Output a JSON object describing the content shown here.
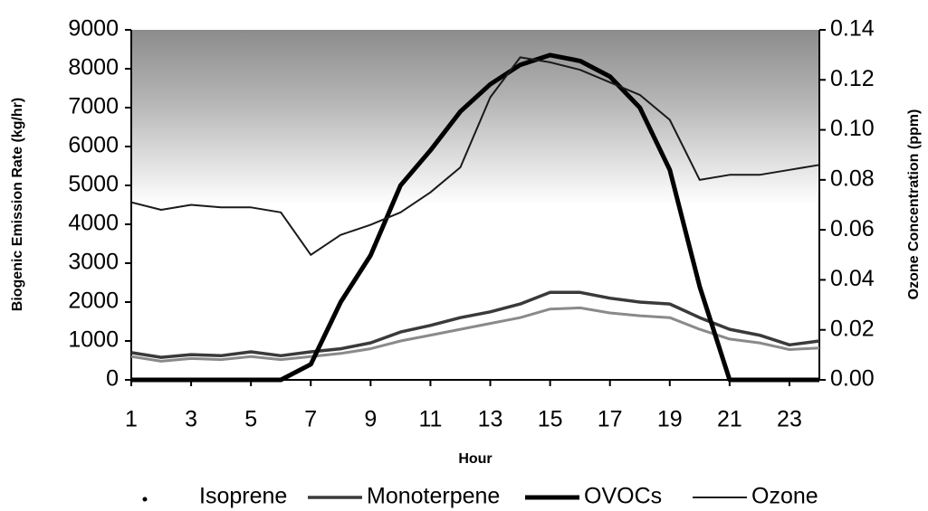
{
  "chart_data": {
    "type": "line",
    "xlabel": "Hour",
    "ylabel": "Biogenic Emission Rate (kg/hr)",
    "y2label": "Ozone Concentration (ppm)",
    "x": [
      1,
      2,
      3,
      4,
      5,
      6,
      7,
      8,
      9,
      10,
      11,
      12,
      13,
      14,
      15,
      16,
      17,
      18,
      19,
      20,
      21,
      22,
      23,
      24
    ],
    "xlim": [
      1,
      24
    ],
    "xticks": [
      1,
      3,
      5,
      7,
      9,
      11,
      13,
      15,
      17,
      19,
      21,
      23
    ],
    "ylim": [
      0,
      9000
    ],
    "yticks": [
      0,
      1000,
      2000,
      3000,
      4000,
      5000,
      6000,
      7000,
      8000,
      9000
    ],
    "y2lim": [
      0,
      0.14
    ],
    "y2ticks": [
      {
        "value": 0,
        "label": "0.00"
      },
      0.02,
      0.04,
      0.06,
      0.08,
      {
        "value": 0.1,
        "label": "0.10"
      },
      0.12,
      0.14
    ],
    "legend": "bottom",
    "series": [
      {
        "name": "Isoprene",
        "color": "#8a8a8a",
        "values": [
          600,
          480,
          550,
          520,
          600,
          520,
          600,
          680,
          800,
          1000,
          1150,
          1300,
          1450,
          1600,
          1820,
          1850,
          1720,
          1650,
          1600,
          1300,
          1050,
          950,
          780,
          820
        ]
      },
      {
        "name": "Monoterpene",
        "color": "#3a3a3a",
        "values": [
          700,
          580,
          650,
          620,
          720,
          620,
          720,
          800,
          950,
          1230,
          1400,
          1600,
          1750,
          1950,
          2250,
          2250,
          2100,
          2000,
          1950,
          1600,
          1300,
          1150,
          900,
          1000
        ]
      },
      {
        "name": "OVOCs",
        "color": "#000000",
        "values": [
          0,
          0,
          0,
          0,
          0,
          0,
          400,
          2000,
          3200,
          5000,
          5900,
          6900,
          7600,
          8100,
          8350,
          8200,
          7800,
          7000,
          5400,
          2400,
          0,
          0,
          0,
          0
        ]
      },
      {
        "name": "Ozone",
        "color": "#1a1a1a",
        "axis": "y2",
        "values": [
          0.071,
          0.068,
          0.07,
          0.069,
          0.069,
          0.067,
          0.05,
          0.058,
          0.062,
          0.067,
          0.075,
          0.085,
          0.113,
          0.129,
          0.127,
          0.124,
          0.119,
          0.114,
          0.104,
          0.08,
          0.082,
          0.082,
          0.084,
          0.086
        ]
      }
    ]
  }
}
